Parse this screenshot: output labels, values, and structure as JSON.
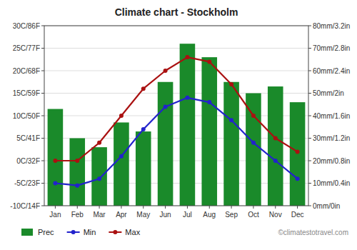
{
  "chart_data": {
    "type": "bar",
    "title": "Climate chart - Stockholm",
    "categories": [
      "Jan",
      "Feb",
      "Mar",
      "Apr",
      "May",
      "Jun",
      "Jul",
      "Aug",
      "Sep",
      "Oct",
      "Nov",
      "Dec"
    ],
    "series": [
      {
        "name": "Prec",
        "type": "bar",
        "axis": "y2",
        "color": "#1a8a2a",
        "values": [
          43,
          30,
          26,
          37,
          33,
          55,
          72,
          66,
          55,
          50,
          53,
          46
        ]
      },
      {
        "name": "Min",
        "type": "line",
        "color": "#2222cc",
        "marker": "circle",
        "line_style": "solid",
        "values": [
          -5,
          -5.5,
          -4,
          1,
          7,
          12,
          14,
          13,
          9,
          4,
          0,
          -4
        ]
      },
      {
        "name": "Max",
        "type": "line",
        "color": "#aa1111",
        "marker": "circle",
        "line_style": "solid",
        "values": [
          0,
          0,
          4,
          10,
          16,
          20,
          23,
          22,
          17,
          10,
          5,
          2
        ]
      }
    ],
    "ylim": [
      -10,
      30
    ],
    "yticks": [
      {
        "value": -10,
        "label": "-10C/14F"
      },
      {
        "value": -5,
        "label": "-5C/23F"
      },
      {
        "value": 0,
        "label": "0C/32F"
      },
      {
        "value": 5,
        "label": "5C/41F"
      },
      {
        "value": 10,
        "label": "10C/50F"
      },
      {
        "value": 15,
        "label": "15C/59F"
      },
      {
        "value": 20,
        "label": "20C/68F"
      },
      {
        "value": 25,
        "label": "25C/77F"
      },
      {
        "value": 30,
        "label": "30C/86F"
      }
    ],
    "y2lim": [
      0,
      80
    ],
    "y2ticks": [
      {
        "value": 0,
        "label": "0mm/0in"
      },
      {
        "value": 10,
        "label": "10mm/0.4in"
      },
      {
        "value": 20,
        "label": "20mm/0.8in"
      },
      {
        "value": 30,
        "label": "30mm/1.2in"
      },
      {
        "value": 40,
        "label": "40mm/1.6in"
      },
      {
        "value": 50,
        "label": "50mm/2in"
      },
      {
        "value": 60,
        "label": "60mm/2.4in"
      },
      {
        "value": 70,
        "label": "70mm/2.8in"
      },
      {
        "value": 80,
        "label": "80mm/3.2in"
      }
    ],
    "grid": true,
    "legend": "bottom",
    "annotations": [
      "©climatestotravel.com"
    ]
  }
}
